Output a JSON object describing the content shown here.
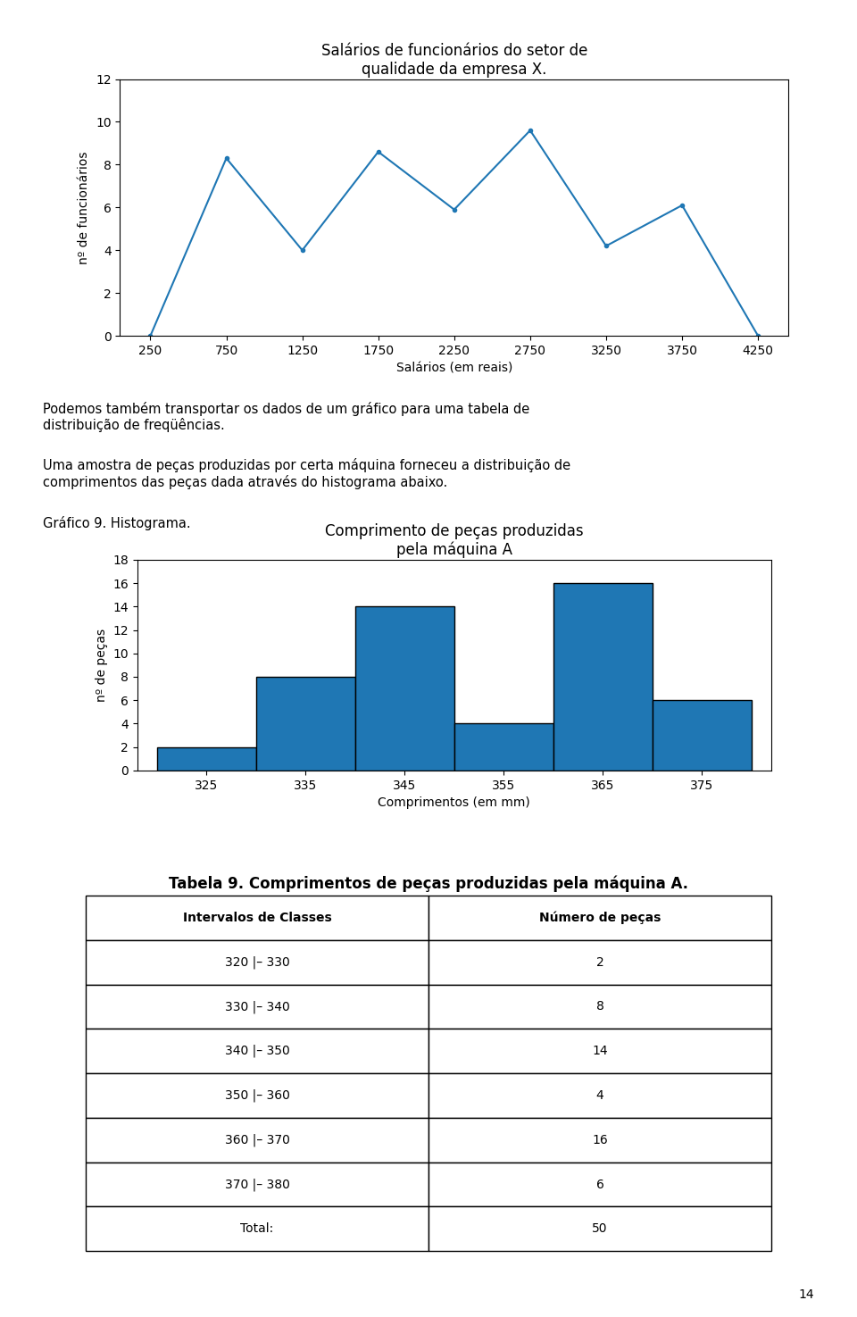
{
  "chart_data": [
    {
      "type": "line",
      "title": "Salários de funcionários do setor de\nqualidade da empresa X.",
      "x_label": "Salários (em reais)",
      "y_label": "nº de funcionários",
      "x": [
        250,
        750,
        1250,
        1750,
        2250,
        2750,
        3250,
        3750,
        4250
      ],
      "values": [
        0,
        8.3,
        4,
        8.6,
        5.9,
        9.6,
        4.2,
        6.1,
        0
      ],
      "xlim": [
        50,
        4450
      ],
      "xticks": [
        250,
        750,
        1250,
        1750,
        2250,
        2750,
        3250,
        3750,
        4250
      ],
      "ylim": [
        0,
        12
      ],
      "yticks": [
        0,
        2,
        4,
        6,
        8,
        10,
        12
      ],
      "marker": "."
    },
    {
      "type": "histogram",
      "title": "Comprimento de peças produzidas\npela máquina A",
      "x_label": "Comprimentos (em mm)",
      "y_label": "nº de peças",
      "bins": [
        320,
        330,
        340,
        350,
        360,
        370,
        380
      ],
      "values": [
        2,
        8,
        14,
        4,
        16,
        6
      ],
      "xlim": [
        318,
        382
      ],
      "xticks": [
        325,
        335,
        345,
        355,
        365,
        375
      ],
      "ylim": [
        0,
        18
      ],
      "yticks": [
        0,
        2,
        4,
        6,
        8,
        10,
        12,
        14,
        16,
        18
      ]
    },
    {
      "type": "table",
      "title": "Tabela 9. Comprimentos de peças produzidas pela máquina A.",
      "columns": [
        "Intervalos de Classes",
        "Número de peças"
      ],
      "rows": [
        [
          "320 |– 330",
          "2"
        ],
        [
          "330 |– 340",
          "8"
        ],
        [
          "340 |– 350",
          "14"
        ],
        [
          "350 |– 360",
          "4"
        ],
        [
          "360 |– 370",
          "16"
        ],
        [
          "370 |– 380",
          "6"
        ],
        [
          "Total:",
          "50"
        ]
      ]
    }
  ],
  "annotations": [
    "Podemos também transportar os dados de um gráfico para uma tabela de\ndistribuição de freqüências.",
    "Uma amostra de peças produzidas por certa máquina forneceu a distribuição de\ncomprimentos das peças dada através do histograma abaixo.",
    "Gráfico 9. Histograma."
  ],
  "page_number": "14"
}
